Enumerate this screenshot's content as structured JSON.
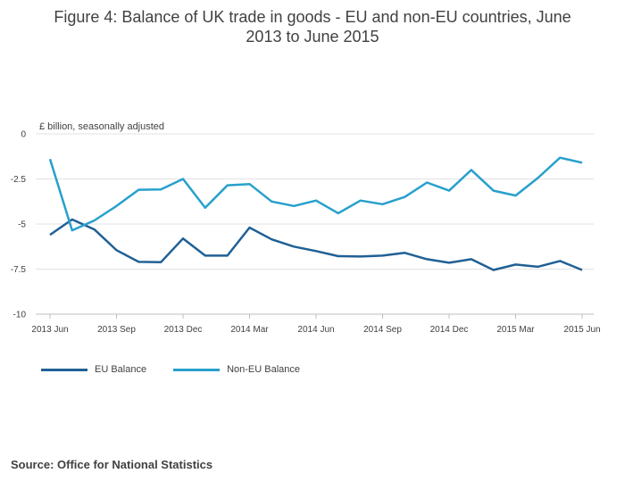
{
  "chart_data": {
    "type": "line",
    "title": [
      "Figure 4: Balance of UK trade in goods - EU and non-EU countries, June",
      "2013 to June 2015"
    ],
    "ylabel": "£ billion, seasonally adjusted",
    "ylim": [
      -10,
      0
    ],
    "yticks": [
      0,
      -2.5,
      -5,
      -7.5,
      -10
    ],
    "ytick_labels": [
      "0",
      "-2.5",
      "-5",
      "-7.5",
      "-10"
    ],
    "x_labels": [
      "2013 Jun",
      "2013 Sep",
      "2013 Dec",
      "2014 Mar",
      "2014 Jun",
      "2014 Sep",
      "2014 Dec",
      "2015 Mar",
      "2015 Jun"
    ],
    "series": [
      {
        "name": "EU Balance",
        "color": "#206095",
        "values": [
          -5.6,
          -4.75,
          -5.3,
          -6.45,
          -7.1,
          -7.12,
          -5.8,
          -6.75,
          -6.75,
          -5.2,
          -5.85,
          -6.25,
          -6.5,
          -6.78,
          -6.8,
          -6.75,
          -6.6,
          -6.95,
          -7.15,
          -6.95,
          -7.55,
          -7.25,
          -7.37,
          -7.05,
          -7.55
        ]
      },
      {
        "name": "Non-EU Balance",
        "color": "#27a0cc",
        "values": [
          -1.4,
          -5.35,
          -4.8,
          -4.0,
          -3.1,
          -3.08,
          -2.5,
          -4.1,
          -2.85,
          -2.78,
          -3.75,
          -4.0,
          -3.7,
          -4.4,
          -3.7,
          -3.9,
          -3.5,
          -2.7,
          -3.15,
          -2.0,
          -3.15,
          -3.42,
          -2.45,
          -1.32,
          -1.6
        ]
      }
    ],
    "legend_position": "bottom-left",
    "grid": true
  },
  "source": "Source: Office for National Statistics"
}
